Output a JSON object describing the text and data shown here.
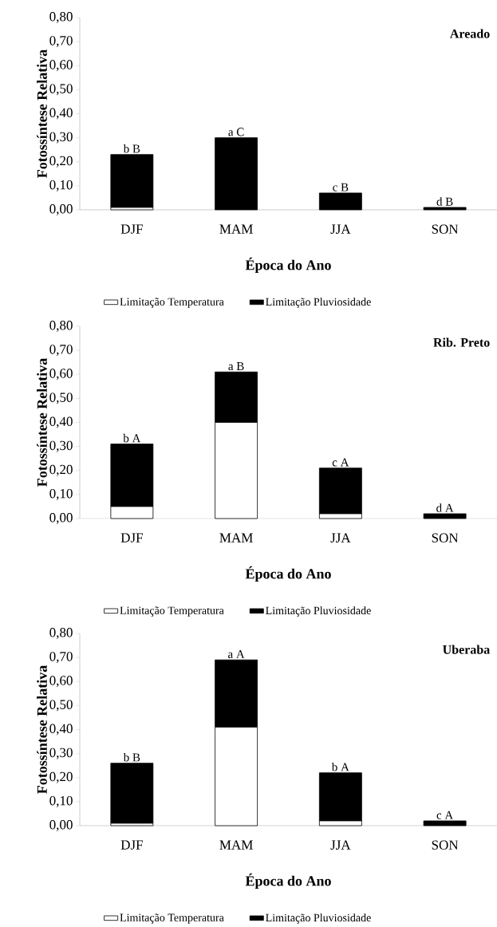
{
  "chart_data": [
    {
      "type": "bar",
      "stacked": true,
      "title": "Areado",
      "xlabel": "Época do Ano",
      "ylabel": "Fotossíntese Relativa",
      "categories": [
        "DJF",
        "MAM",
        "JJA",
        "SON"
      ],
      "series": [
        {
          "name": "Limitação Temperatura",
          "color": "#ffffff",
          "values": [
            0.01,
            0,
            0,
            0
          ]
        },
        {
          "name": "Limitação Pluviosidade",
          "color": "#000000",
          "values": [
            0.22,
            0.3,
            0.07,
            0.01
          ]
        }
      ],
      "ylim": [
        0,
        0.8
      ],
      "yticks": [
        {
          "value": 0,
          "label": "0,00"
        },
        {
          "value": 0.1,
          "label": "0,10"
        },
        {
          "value": 0.2,
          "label": "0,20"
        },
        {
          "value": 0.3,
          "label": "0,30"
        },
        {
          "value": 0.4,
          "label": "0,40"
        },
        {
          "value": 0.5,
          "label": "0,50"
        },
        {
          "value": 0.6,
          "label": "0,60"
        },
        {
          "value": 0.7,
          "label": "0,70"
        },
        {
          "value": 0.8,
          "label": "0,80"
        }
      ],
      "legend": "bottom",
      "annotations": [
        {
          "text": "b B",
          "x": "DJF",
          "y": 0.23
        },
        {
          "text": "a C",
          "x": "MAM",
          "y": 0.3
        },
        {
          "text": "c B",
          "x": "JJA",
          "y": 0.07
        },
        {
          "text": "d B",
          "x": "SON",
          "y": 0.01
        }
      ]
    },
    {
      "type": "bar",
      "stacked": true,
      "title": "Rib. Preto",
      "xlabel": "Época do Ano",
      "ylabel": "Fotossíntese Relativa",
      "categories": [
        "DJF",
        "MAM",
        "JJA",
        "SON"
      ],
      "series": [
        {
          "name": "Limitação Temperatura",
          "color": "#ffffff",
          "values": [
            0.05,
            0.4,
            0.02,
            0
          ]
        },
        {
          "name": "Limitação Pluviosidade",
          "color": "#000000",
          "values": [
            0.26,
            0.21,
            0.19,
            0.02
          ]
        }
      ],
      "ylim": [
        0,
        0.8
      ],
      "yticks": [
        {
          "value": 0,
          "label": "0,00"
        },
        {
          "value": 0.1,
          "label": "0,10"
        },
        {
          "value": 0.2,
          "label": "0,20"
        },
        {
          "value": 0.3,
          "label": "0,30"
        },
        {
          "value": 0.4,
          "label": "0,40"
        },
        {
          "value": 0.5,
          "label": "0,50"
        },
        {
          "value": 0.6,
          "label": "0,60"
        },
        {
          "value": 0.7,
          "label": "0,70"
        },
        {
          "value": 0.8,
          "label": "0,80"
        }
      ],
      "legend": "bottom",
      "annotations": [
        {
          "text": "b A",
          "x": "DJF",
          "y": 0.31
        },
        {
          "text": "a B",
          "x": "MAM",
          "y": 0.61
        },
        {
          "text": "c A",
          "x": "JJA",
          "y": 0.21
        },
        {
          "text": "d A",
          "x": "SON",
          "y": 0.02
        }
      ]
    },
    {
      "type": "bar",
      "stacked": true,
      "title": "Uberaba",
      "xlabel": "Época do Ano",
      "ylabel": "Fotossíntese Relativa",
      "categories": [
        "DJF",
        "MAM",
        "JJA",
        "SON"
      ],
      "series": [
        {
          "name": "Limitação Temperatura",
          "color": "#ffffff",
          "values": [
            0.01,
            0.41,
            0.02,
            0
          ]
        },
        {
          "name": "Limitação Pluviosidade",
          "color": "#000000",
          "values": [
            0.25,
            0.28,
            0.2,
            0.02
          ]
        }
      ],
      "ylim": [
        0,
        0.8
      ],
      "yticks": [
        {
          "value": 0,
          "label": "0,00"
        },
        {
          "value": 0.1,
          "label": "0,10"
        },
        {
          "value": 0.2,
          "label": "0,20"
        },
        {
          "value": 0.3,
          "label": "0,30"
        },
        {
          "value": 0.4,
          "label": "0,40"
        },
        {
          "value": 0.5,
          "label": "0,50"
        },
        {
          "value": 0.6,
          "label": "0,60"
        },
        {
          "value": 0.7,
          "label": "0,70"
        },
        {
          "value": 0.8,
          "label": "0,80"
        }
      ],
      "legend": "bottom",
      "annotations": [
        {
          "text": "b B",
          "x": "DJF",
          "y": 0.26
        },
        {
          "text": "a A",
          "x": "MAM",
          "y": 0.69
        },
        {
          "text": "b A",
          "x": "JJA",
          "y": 0.22
        },
        {
          "text": "c A",
          "x": "SON",
          "y": 0.02
        }
      ]
    }
  ]
}
